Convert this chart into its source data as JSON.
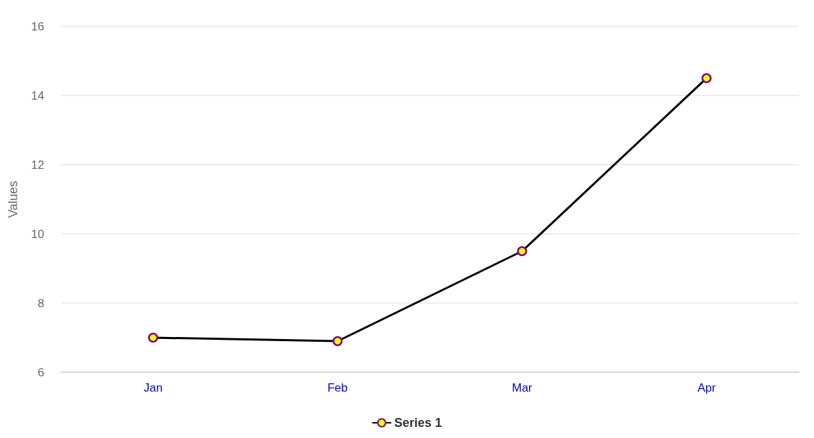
{
  "chart_data": {
    "type": "line",
    "ylabel": "Values",
    "categories": [
      "Jan",
      "Feb",
      "Mar",
      "Apr"
    ],
    "series": [
      {
        "name": "Series 1",
        "color": "#000000",
        "values": [
          7.0,
          6.9,
          9.5,
          14.5
        ]
      }
    ],
    "ylim": [
      6,
      16
    ],
    "yticks": [
      6,
      8,
      10,
      12,
      14,
      16
    ],
    "grid": "y",
    "legend": "bottom",
    "marker": "circle",
    "line_style": "solid"
  }
}
